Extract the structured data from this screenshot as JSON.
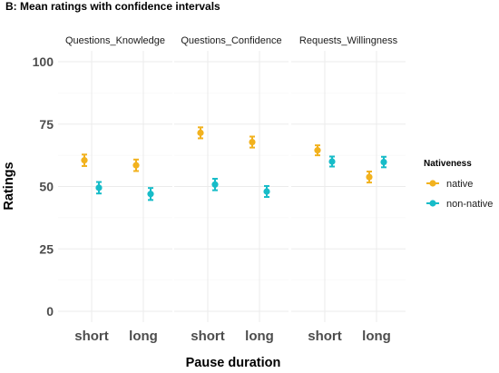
{
  "chart_data": {
    "type": "scatter",
    "title": "B: Mean ratings with confidence intervals",
    "xlabel": "Pause duration",
    "ylabel": "Ratings",
    "ylim": [
      0,
      100
    ],
    "yticks": [
      0,
      25,
      50,
      75,
      100
    ],
    "categories": [
      "short",
      "long"
    ],
    "grid": true,
    "legend": {
      "title": "Nativeness",
      "position": "right",
      "entries": [
        "native",
        "non-native"
      ]
    },
    "colors": {
      "native": "#F2B21E",
      "non-native": "#17BCC8"
    },
    "panels": [
      {
        "name": "Questions_Knowledge",
        "series": [
          {
            "name": "native",
            "values": [
              60.5,
              58.5
            ],
            "ci": [
              [
                58.2,
                62.8
              ],
              [
                56.2,
                60.8
              ]
            ]
          },
          {
            "name": "non-native",
            "values": [
              49.5,
              47.0
            ],
            "ci": [
              [
                47.2,
                51.8
              ],
              [
                44.6,
                49.4
              ]
            ]
          }
        ]
      },
      {
        "name": "Questions_Confidence",
        "series": [
          {
            "name": "native",
            "values": [
              71.5,
              67.8
            ],
            "ci": [
              [
                69.3,
                73.7
              ],
              [
                65.6,
                70.0
              ]
            ]
          },
          {
            "name": "non-native",
            "values": [
              50.8,
              48.0
            ],
            "ci": [
              [
                48.5,
                53.1
              ],
              [
                45.8,
                50.2
              ]
            ]
          }
        ]
      },
      {
        "name": "Requests_Willingness",
        "series": [
          {
            "name": "native",
            "values": [
              64.5,
              53.8
            ],
            "ci": [
              [
                62.5,
                66.5
              ],
              [
                51.6,
                56.0
              ]
            ]
          },
          {
            "name": "non-native",
            "values": [
              60.0,
              59.8
            ],
            "ci": [
              [
                58.0,
                62.0
              ],
              [
                57.7,
                61.9
              ]
            ]
          }
        ]
      }
    ]
  }
}
